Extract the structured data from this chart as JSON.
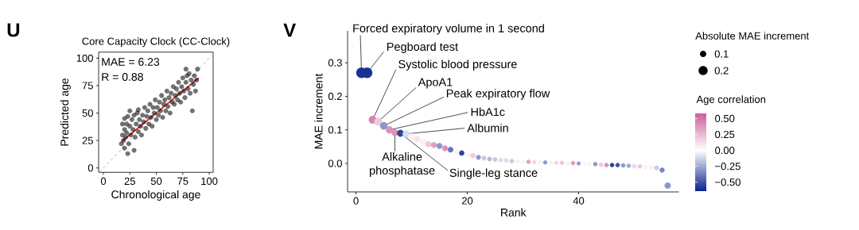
{
  "chart_data": [
    {
      "type": "scatter",
      "marker": "circle",
      "title": "Core Capacity Clock (CC-Clock)",
      "xlabel": "Chronological age",
      "ylabel": "Predicted age",
      "xlim": [
        -4.5,
        103.7
      ],
      "ylim": [
        -4,
        105.5
      ],
      "xticks": [
        0,
        25,
        50,
        75,
        100
      ],
      "yticks": [
        0,
        25,
        50,
        75,
        100
      ],
      "annotations": [
        "U",
        "MAE = 6.23",
        "R = 0.88"
      ],
      "series": [
        {
          "type": "scatter",
          "color": "#000000",
          "x": [
            17,
            23,
            29,
            25,
            33,
            84,
            89,
            78,
            20,
            18,
            18,
            19,
            20,
            20,
            21,
            22,
            22,
            23,
            24,
            25,
            26,
            27,
            28,
            29,
            30,
            31,
            32,
            33,
            34,
            35,
            36,
            37,
            38,
            39,
            40,
            41,
            42,
            43,
            44,
            45,
            46,
            47,
            48,
            49,
            50,
            51,
            52,
            53,
            54,
            55,
            56,
            57,
            58,
            59,
            60,
            61,
            62,
            63,
            64,
            65,
            66,
            67,
            68,
            69,
            70,
            71,
            72,
            73,
            74,
            75,
            76,
            77,
            78,
            79,
            80,
            81,
            82,
            83,
            85,
            86,
            87,
            88
          ],
          "values": [
            22,
            13,
            16,
            52,
            53,
            52,
            90,
            90,
            18,
            30,
            40,
            25,
            35,
            45,
            28,
            40,
            32,
            47,
            22,
            38,
            30,
            44,
            35,
            48,
            28,
            40,
            50,
            33,
            44,
            38,
            30,
            48,
            42,
            55,
            36,
            47,
            52,
            40,
            58,
            46,
            38,
            55,
            50,
            62,
            44,
            55,
            48,
            60,
            52,
            66,
            46,
            58,
            62,
            52,
            70,
            56,
            64,
            50,
            68,
            60,
            74,
            58,
            66,
            72,
            62,
            78,
            68,
            60,
            74,
            82,
            70,
            64,
            78,
            84,
            72,
            86,
            68,
            80,
            76,
            84,
            70,
            80
          ]
        },
        {
          "type": "line",
          "color": "#e8302a",
          "marker": "none",
          "x": [
            18,
            90
          ],
          "values": [
            24.5,
            82
          ]
        },
        {
          "type": "line",
          "color": "#b5b5b5",
          "marker": "none",
          "line_style": "dashed",
          "x": [
            -4,
            103.5
          ],
          "values": [
            -4,
            103.5
          ]
        }
      ]
    },
    {
      "type": "bubble",
      "xlabel": "Rank",
      "ylabel": "MAE increment",
      "legend_title": "Absolute MAE increment",
      "clabel": "Age correlation",
      "xlim": [
        -1.5,
        58
      ],
      "ylim": [
        -0.085,
        0.395
      ],
      "xticks": [
        0,
        20,
        40
      ],
      "yticks": [
        {
          "value": 0,
          "label": "0.0"
        },
        0.1,
        0.2,
        0.3
      ],
      "clim": [
        -0.64,
        0.58
      ],
      "cticks": [
        {
          "value": 0.5,
          "label": "0.50"
        },
        {
          "value": 0.25,
          "label": "0.25"
        },
        {
          "value": 0,
          "label": "0.00"
        },
        {
          "value": -0.25,
          "label": "−0.25"
        },
        {
          "value": -0.5,
          "label": "−0.50"
        }
      ],
      "size_legend": [
        0.1,
        0.2
      ],
      "annotations": [
        "V",
        {
          "text": "Forced expiratory volume in 1 second",
          "x": 1,
          "y": 0.27
        },
        {
          "text": "Pegboard test",
          "x": 2,
          "y": 0.27
        },
        {
          "text": "Systolic blood pressure",
          "x": 3,
          "y": 0.13
        },
        {
          "text": "ApoA1",
          "x": 4,
          "y": 0.125
        },
        {
          "text": "Peak expiratory flow",
          "x": 5,
          "y": 0.112
        },
        {
          "text": "HbA1c",
          "x": 6,
          "y": 0.1
        },
        {
          "text": "Albumin",
          "x": 9,
          "y": 0.088
        },
        {
          "text": "Alkaline phosphatase",
          "x": 7,
          "y": 0.092
        },
        {
          "text": "Single-leg stance",
          "x": 8,
          "y": 0.09
        }
      ],
      "x": [
        1,
        2,
        3,
        4,
        5,
        6,
        7,
        8,
        9,
        10,
        11,
        12,
        13,
        14,
        15,
        16,
        17,
        18,
        19,
        20,
        21,
        22,
        23,
        24,
        25,
        26,
        27,
        28,
        29,
        30,
        31,
        32,
        33,
        34,
        35,
        36,
        37,
        38,
        39,
        40,
        41,
        42,
        43,
        44,
        45,
        46,
        47,
        48,
        49,
        50,
        51,
        52,
        53,
        54,
        55,
        56
      ],
      "values": [
        0.27,
        0.27,
        0.13,
        0.125,
        0.112,
        0.1,
        0.092,
        0.09,
        0.088,
        0.08,
        0.072,
        0.065,
        0.057,
        0.055,
        0.052,
        0.045,
        0.041,
        0.035,
        0.031,
        0.026,
        0.023,
        0.018,
        0.016,
        0.013,
        0.012,
        0.01,
        0.009,
        0.007,
        0.006,
        0.005,
        0.005,
        0.004,
        0.004,
        0.003,
        0.002,
        0.002,
        0.002,
        0.001,
        0.001,
        0.0,
        0.0,
        -0.001,
        -0.002,
        -0.004,
        -0.005,
        -0.005,
        -0.005,
        -0.006,
        -0.007,
        -0.008,
        -0.009,
        -0.011,
        -0.012,
        -0.013,
        -0.02,
        -0.066
      ],
      "sizes": [
        0.26,
        0.26,
        0.14,
        0.14,
        0.13,
        0.12,
        0.11,
        0.11,
        0.11,
        0.1,
        0.095,
        0.09,
        0.085,
        0.08,
        0.08,
        0.075,
        0.07,
        0.065,
        0.06,
        0.06,
        0.055,
        0.05,
        0.05,
        0.045,
        0.045,
        0.045,
        0.045,
        0.04,
        0.04,
        0.04,
        0.04,
        0.04,
        0.04,
        0.04,
        0.04,
        0.04,
        0.04,
        0.04,
        0.04,
        0.035,
        0.035,
        0.04,
        0.04,
        0.04,
        0.04,
        0.04,
        0.04,
        0.04,
        0.04,
        0.045,
        0.045,
        0.045,
        0.045,
        0.045,
        0.055,
        0.09
      ],
      "cvalues": [
        -0.6,
        -0.6,
        0.45,
        0.2,
        -0.3,
        0.4,
        0.4,
        -0.55,
        -0.1,
        0.05,
        0.1,
        0.05,
        0.2,
        0.35,
        -0.3,
        0.4,
        -0.4,
        0.05,
        -0.55,
        0.05,
        0.2,
        -0.3,
        -0.15,
        -0.2,
        0.25,
        -0.1,
        0.15,
        -0.15,
        0.05,
        0.05,
        0.35,
        0.15,
        0.05,
        -0.3,
        0.05,
        0.15,
        0.2,
        0.05,
        0.35,
        -0.3,
        0.05,
        0.05,
        -0.3,
        0.2,
        0.4,
        -0.55,
        -0.5,
        -0.3,
        -0.25,
        0.15,
        0.2,
        0.05,
        0.05,
        -0.15,
        -0.35,
        -0.3
      ]
    }
  ]
}
